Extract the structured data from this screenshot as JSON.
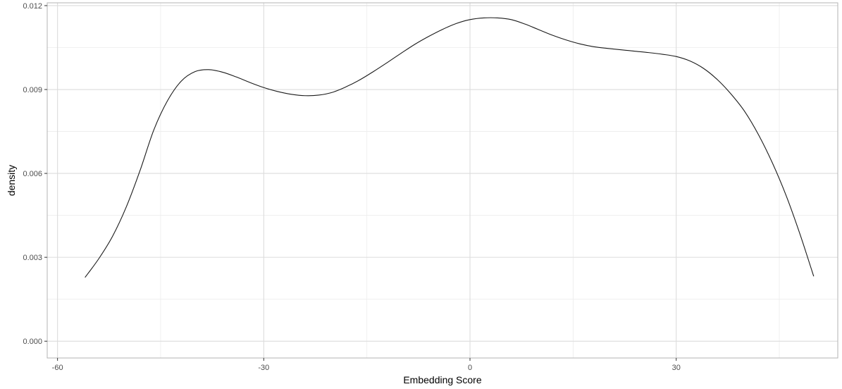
{
  "chart_data": {
    "type": "line",
    "title": "",
    "xlabel": "Embedding Score",
    "ylabel": "density",
    "xlim": [
      -61.5,
      53.5
    ],
    "ylim": [
      -0.0006,
      0.0121
    ],
    "x_ticks": [
      -60,
      -30,
      0,
      30
    ],
    "x_tick_labels": [
      "-60",
      "-30",
      "0",
      "30"
    ],
    "y_ticks": [
      0.0,
      0.003,
      0.006,
      0.009,
      0.012
    ],
    "y_tick_labels": [
      "0.000",
      "0.003",
      "0.006",
      "0.009",
      "0.012"
    ],
    "grid": true,
    "legend": "none",
    "colors": {
      "line": "#1a1a1a",
      "grid_major": "#dcdcdc",
      "grid_minor": "#ececec",
      "panel_border": "#b3b3b3"
    },
    "series": [
      {
        "x": [
          -56,
          -54,
          -52,
          -50,
          -48,
          -46,
          -44,
          -42,
          -40,
          -38,
          -36,
          -34,
          -32,
          -30,
          -28,
          -26,
          -24,
          -22,
          -20,
          -18,
          -16,
          -14,
          -12,
          -10,
          -8,
          -6,
          -4,
          -2,
          0,
          2,
          4,
          6,
          8,
          10,
          12,
          14,
          16,
          18,
          20,
          22,
          24,
          26,
          28,
          30,
          32,
          34,
          36,
          38,
          40,
          42,
          44,
          46,
          48,
          50
        ],
        "y": [
          0.00228,
          0.00295,
          0.00375,
          0.0048,
          0.0061,
          0.00755,
          0.0086,
          0.0093,
          0.00964,
          0.00971,
          0.00962,
          0.00945,
          0.00925,
          0.00907,
          0.00893,
          0.00883,
          0.00878,
          0.0088,
          0.0089,
          0.0091,
          0.00935,
          0.00965,
          0.00997,
          0.0103,
          0.01062,
          0.0109,
          0.01115,
          0.01136,
          0.0115,
          0.01156,
          0.01156,
          0.0115,
          0.01134,
          0.01114,
          0.01094,
          0.01077,
          0.01063,
          0.01053,
          0.01047,
          0.01042,
          0.01037,
          0.01032,
          0.01026,
          0.01018,
          0.01002,
          0.00975,
          0.00935,
          0.00883,
          0.0082,
          0.00737,
          0.00637,
          0.0052,
          0.00383,
          0.00232
        ]
      }
    ]
  }
}
